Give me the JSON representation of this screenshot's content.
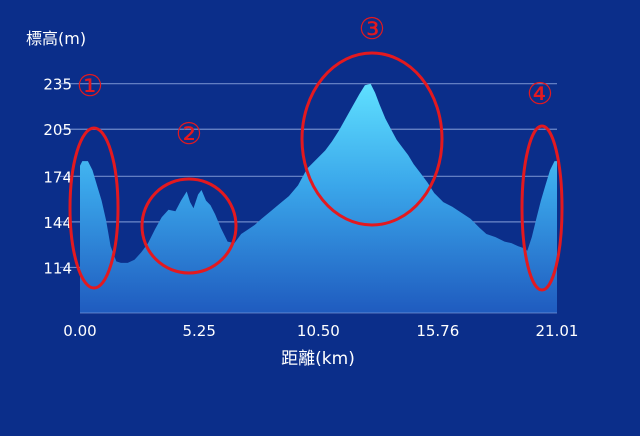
{
  "chart_data": {
    "type": "area",
    "ylabel": "標高(m)",
    "xlabel": "距離(km)",
    "y_ticks": [
      "235",
      "205",
      "174",
      "144",
      "114"
    ],
    "x_ticks": [
      "0.00",
      "5.25",
      "10.50",
      "15.76",
      "21.01"
    ],
    "xlim": [
      0,
      21.01
    ],
    "ylim": [
      84,
      244
    ],
    "grid": true,
    "series": [
      {
        "x": [
          0.0,
          0.1,
          0.35,
          0.55,
          0.75,
          0.95,
          1.15,
          1.35,
          1.6,
          1.8,
          2.1,
          2.4,
          2.7,
          3.0,
          3.3,
          3.6,
          3.9,
          4.2,
          4.45,
          4.7,
          4.85,
          5.0,
          5.2,
          5.35,
          5.55,
          5.75,
          5.95,
          6.2,
          6.5,
          6.8,
          7.1,
          7.4,
          7.7,
          8.0,
          8.4,
          8.8,
          9.2,
          9.6,
          10.0,
          10.4,
          10.8,
          11.1,
          11.4,
          11.7,
          12.0,
          12.3,
          12.55,
          12.8,
          13.0,
          13.2,
          13.45,
          13.7,
          13.95,
          14.2,
          14.45,
          14.7,
          15.0,
          15.3,
          15.6,
          16.0,
          16.4,
          16.8,
          17.2,
          17.6,
          17.9,
          18.3,
          18.7,
          19.0,
          19.3,
          19.5,
          19.7,
          19.9,
          20.1,
          20.3,
          20.5,
          20.7,
          20.9,
          21.01
        ],
        "y": [
          181,
          184,
          184,
          178,
          168,
          158,
          145,
          128,
          118,
          117,
          117,
          119,
          124,
          130,
          139,
          147,
          152,
          151,
          158,
          164,
          157,
          153,
          162,
          165,
          158,
          155,
          149,
          140,
          131,
          130,
          136,
          139,
          142,
          146,
          151,
          156,
          161,
          168,
          179,
          185,
          191,
          197,
          204,
          212,
          220,
          228,
          234,
          235,
          229,
          221,
          212,
          205,
          198,
          193,
          188,
          182,
          176,
          170,
          163,
          157,
          154,
          150,
          146,
          140,
          136,
          134,
          131,
          130,
          128,
          127,
          125,
          134,
          146,
          158,
          168,
          178,
          184,
          184
        ]
      }
    ],
    "annotations": [
      "①",
      "②",
      "③",
      "④"
    ],
    "colors": {
      "background": "#0b2e8a",
      "area_top": "#5fe0ff",
      "area_bottom": "#1f5bbf",
      "grid": "#8fa8e0",
      "highlight_ellipse": "#e3191f",
      "annotation_text": "#e3191f",
      "axis_text": "#ffffff"
    }
  }
}
